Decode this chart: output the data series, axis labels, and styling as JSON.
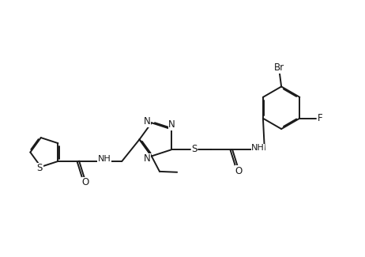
{
  "bg_color": "#ffffff",
  "line_color": "#1a1a1a",
  "label_color": "#1a1a1a",
  "figsize": [
    4.62,
    3.25
  ],
  "dpi": 100,
  "linewidth": 1.4,
  "font_size": 8.5,
  "xlim": [
    0,
    10
  ],
  "ylim": [
    0,
    7
  ]
}
